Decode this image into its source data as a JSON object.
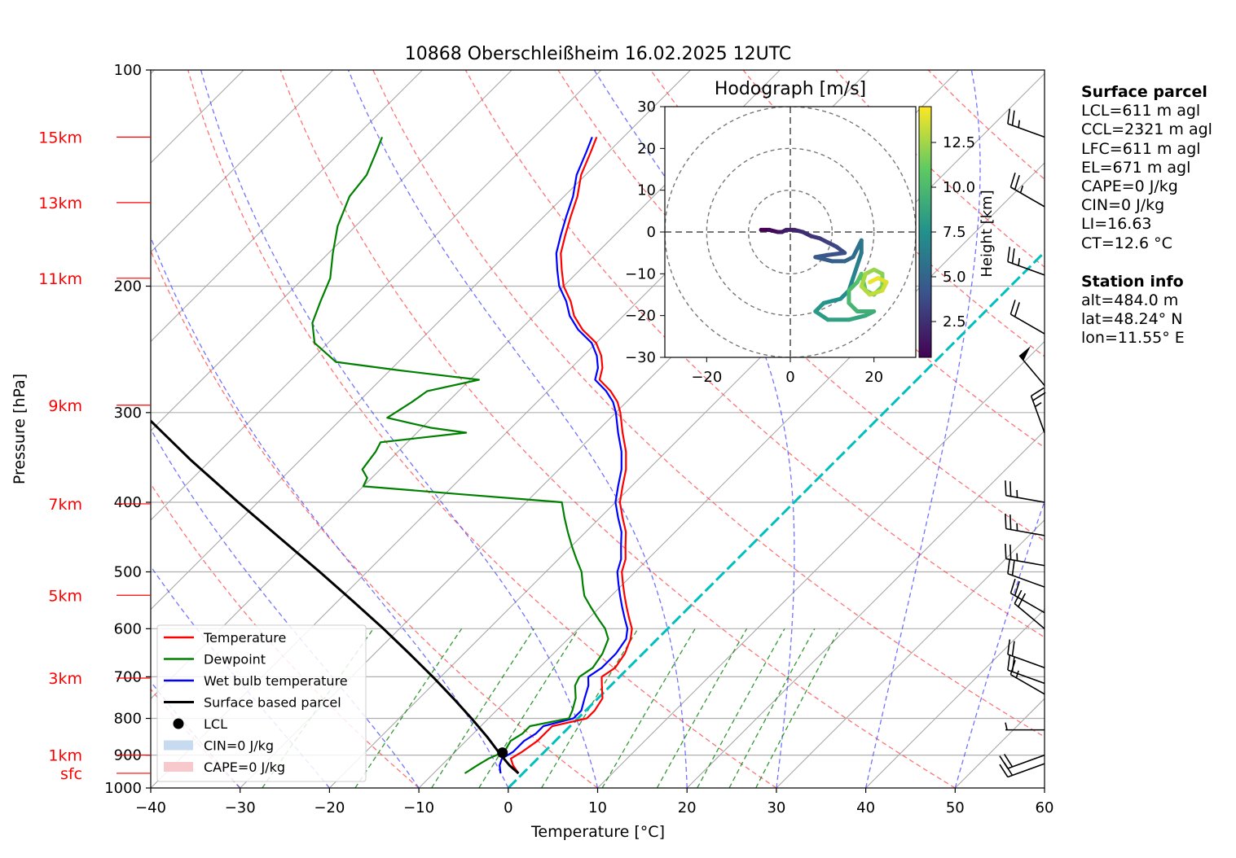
{
  "chart_data": {
    "type": "skew-t",
    "title": "10868 Oberschleißheim 16.02.2025 12UTC",
    "xlabel": "Temperature [°C]",
    "ylabel": "Pressure [hPa]",
    "xlim": [
      -40,
      60
    ],
    "ylim": [
      1000,
      100
    ],
    "x_ticks": [
      "−40",
      "−30",
      "−20",
      "−10",
      "0",
      "10",
      "20",
      "30",
      "40",
      "50",
      "60"
    ],
    "y_ticks": [
      {
        "p": 100,
        "label": "100"
      },
      {
        "p": 200,
        "label": "200"
      },
      {
        "p": 300,
        "label": "300"
      },
      {
        "p": 400,
        "label": "400"
      },
      {
        "p": 500,
        "label": "500"
      },
      {
        "p": 600,
        "label": "600"
      },
      {
        "p": 700,
        "label": "700"
      },
      {
        "p": 800,
        "label": "800"
      },
      {
        "p": 900,
        "label": "900"
      },
      {
        "p": 1000,
        "label": "1000"
      }
    ],
    "height_ticks": [
      {
        "p": 124,
        "label": "15km"
      },
      {
        "p": 153,
        "label": "13km"
      },
      {
        "p": 195,
        "label": "11km"
      },
      {
        "p": 293,
        "label": "9km"
      },
      {
        "p": 402,
        "label": "7km"
      },
      {
        "p": 539,
        "label": "5km"
      },
      {
        "p": 703,
        "label": "3km"
      },
      {
        "p": 900,
        "label": "1km"
      },
      {
        "p": 954,
        "label": "sfc"
      }
    ],
    "grid": true,
    "legend_position": "lower-left",
    "legend": [
      {
        "label": "Temperature",
        "color": "#ff0000",
        "kind": "line"
      },
      {
        "label": "Dewpoint",
        "color": "#008000",
        "kind": "line"
      },
      {
        "label": "Wet bulb temperature",
        "color": "#0000ff",
        "kind": "line"
      },
      {
        "label": "Surface based parcel",
        "color": "#000000",
        "kind": "line"
      },
      {
        "label": "LCL",
        "color": "#000000",
        "kind": "dot"
      },
      {
        "label": "CIN=0 J/kg",
        "color": "#c6dbef",
        "kind": "patch"
      },
      {
        "label": "CAPE=0 J/kg",
        "color": "#f7c9cc",
        "kind": "patch"
      }
    ],
    "series": [
      {
        "name": "Temperature",
        "color": "#ff0000",
        "points": [
          [
            954,
            -0.5
          ],
          [
            930,
            -2.0
          ],
          [
            910,
            -3.0
          ],
          [
            890,
            -2.5
          ],
          [
            860,
            -2.0
          ],
          [
            840,
            -2.0
          ],
          [
            820,
            -2.0
          ],
          [
            800,
            1.0
          ],
          [
            780,
            1.0
          ],
          [
            750,
            0.5
          ],
          [
            720,
            -1.0
          ],
          [
            700,
            -2.0
          ],
          [
            680,
            -1.5
          ],
          [
            650,
            -2.0
          ],
          [
            620,
            -3.0
          ],
          [
            600,
            -4.0
          ],
          [
            580,
            -5.5
          ],
          [
            560,
            -7.0
          ],
          [
            540,
            -8.5
          ],
          [
            520,
            -10.0
          ],
          [
            500,
            -11.5
          ],
          [
            480,
            -12.5
          ],
          [
            460,
            -14.0
          ],
          [
            440,
            -15.5
          ],
          [
            420,
            -17.5
          ],
          [
            400,
            -19.5
          ],
          [
            380,
            -21.0
          ],
          [
            360,
            -22.5
          ],
          [
            340,
            -24.5
          ],
          [
            320,
            -27.0
          ],
          [
            300,
            -29.5
          ],
          [
            290,
            -31.0
          ],
          [
            280,
            -33.0
          ],
          [
            270,
            -35.5
          ],
          [
            260,
            -36.5
          ],
          [
            250,
            -38.0
          ],
          [
            240,
            -40.0
          ],
          [
            230,
            -43.0
          ],
          [
            220,
            -45.5
          ],
          [
            210,
            -47.5
          ],
          [
            200,
            -50.0
          ],
          [
            190,
            -52.0
          ],
          [
            180,
            -54.0
          ],
          [
            170,
            -55.5
          ],
          [
            160,
            -57.0
          ],
          [
            150,
            -58.5
          ],
          [
            140,
            -60.5
          ],
          [
            130,
            -62.0
          ],
          [
            124,
            -63.0
          ]
        ]
      },
      {
        "name": "Wet bulb temperature",
        "color": "#0000ff",
        "points": [
          [
            954,
            -2.5
          ],
          [
            930,
            -3.5
          ],
          [
            910,
            -4.0
          ],
          [
            890,
            -3.5
          ],
          [
            860,
            -3.5
          ],
          [
            840,
            -3.0
          ],
          [
            820,
            -3.0
          ],
          [
            800,
            -0.5
          ],
          [
            780,
            -0.5
          ],
          [
            750,
            -1.5
          ],
          [
            720,
            -2.5
          ],
          [
            700,
            -3.5
          ],
          [
            680,
            -3.0
          ],
          [
            650,
            -3.0
          ],
          [
            620,
            -3.5
          ],
          [
            600,
            -4.5
          ],
          [
            580,
            -6.0
          ],
          [
            560,
            -7.5
          ],
          [
            540,
            -9.0
          ],
          [
            520,
            -10.5
          ],
          [
            500,
            -12.0
          ],
          [
            480,
            -13.0
          ],
          [
            460,
            -14.5
          ],
          [
            440,
            -16.0
          ],
          [
            420,
            -18.0
          ],
          [
            400,
            -20.0
          ],
          [
            380,
            -21.5
          ],
          [
            360,
            -23.0
          ],
          [
            340,
            -25.0
          ],
          [
            320,
            -27.5
          ],
          [
            300,
            -30.0
          ],
          [
            290,
            -31.5
          ],
          [
            280,
            -33.5
          ],
          [
            270,
            -36.0
          ],
          [
            260,
            -37.0
          ],
          [
            250,
            -38.5
          ],
          [
            240,
            -40.5
          ],
          [
            230,
            -43.5
          ],
          [
            220,
            -46.0
          ],
          [
            210,
            -48.0
          ],
          [
            200,
            -50.5
          ],
          [
            190,
            -52.5
          ],
          [
            180,
            -54.5
          ],
          [
            170,
            -56.0
          ],
          [
            160,
            -57.5
          ],
          [
            150,
            -59.0
          ],
          [
            140,
            -61.0
          ],
          [
            130,
            -62.5
          ],
          [
            124,
            -63.5
          ]
        ]
      },
      {
        "name": "Dewpoint",
        "color": "#008000",
        "points": [
          [
            954,
            -6.5
          ],
          [
            930,
            -6.0
          ],
          [
            910,
            -5.5
          ],
          [
            890,
            -4.5
          ],
          [
            860,
            -5.0
          ],
          [
            840,
            -4.5
          ],
          [
            820,
            -4.5
          ],
          [
            800,
            -1.0
          ],
          [
            780,
            -1.5
          ],
          [
            750,
            -2.5
          ],
          [
            720,
            -4.0
          ],
          [
            700,
            -4.5
          ],
          [
            680,
            -4.0
          ],
          [
            650,
            -4.5
          ],
          [
            620,
            -5.5
          ],
          [
            600,
            -7.0
          ],
          [
            580,
            -9.0
          ],
          [
            560,
            -11.0
          ],
          [
            540,
            -13.0
          ],
          [
            520,
            -14.5
          ],
          [
            500,
            -16.0
          ],
          [
            480,
            -18.0
          ],
          [
            460,
            -20.0
          ],
          [
            440,
            -22.0
          ],
          [
            420,
            -24.0
          ],
          [
            400,
            -26.0
          ],
          [
            390,
            -38.0
          ],
          [
            380,
            -50.0
          ],
          [
            370,
            -50.5
          ],
          [
            360,
            -52.0
          ],
          [
            340,
            -52.5
          ],
          [
            330,
            -53.0
          ],
          [
            320,
            -44.5
          ],
          [
            315,
            -49.0
          ],
          [
            305,
            -55.0
          ],
          [
            290,
            -54.0
          ],
          [
            280,
            -53.5
          ],
          [
            270,
            -49.0
          ],
          [
            262,
            -59.0
          ],
          [
            255,
            -67.0
          ],
          [
            240,
            -71.5
          ],
          [
            225,
            -74.0
          ],
          [
            210,
            -75.5
          ],
          [
            195,
            -77.0
          ],
          [
            180,
            -79.5
          ],
          [
            165,
            -82.0
          ],
          [
            150,
            -84.0
          ],
          [
            140,
            -84.5
          ],
          [
            130,
            -86.0
          ],
          [
            124,
            -87.0
          ]
        ]
      },
      {
        "name": "Surface based parcel",
        "color": "#000000",
        "points": [
          [
            954,
            -0.5
          ],
          [
            930,
            -2.4
          ],
          [
            900,
            -4.5
          ],
          [
            850,
            -8.0
          ],
          [
            800,
            -11.9
          ],
          [
            750,
            -16.2
          ],
          [
            700,
            -20.9
          ],
          [
            650,
            -26.1
          ],
          [
            600,
            -31.8
          ],
          [
            550,
            -38.2
          ],
          [
            500,
            -45.3
          ],
          [
            450,
            -53.3
          ],
          [
            400,
            -62.2
          ],
          [
            350,
            -72.1
          ],
          [
            300,
            -83.0
          ],
          [
            280,
            -87.5
          ]
        ]
      }
    ],
    "lcl": {
      "p": 893,
      "t": -4.6
    },
    "hodograph": {
      "title": "Hodograph [m/s]",
      "xlim": [
        -30,
        30
      ],
      "ylim": [
        -30,
        30
      ],
      "x_ticks": [
        "−20",
        "0",
        "20"
      ],
      "y_ticks": [
        {
          "v": 30,
          "label": "30"
        },
        {
          "v": 20,
          "label": "20"
        },
        {
          "v": 10,
          "label": "10"
        },
        {
          "v": 0,
          "label": "0"
        },
        {
          "v": -10,
          "label": "−10"
        },
        {
          "v": -20,
          "label": "−20"
        },
        {
          "v": -30,
          "label": "−30"
        }
      ],
      "rings": [
        10,
        20,
        30
      ],
      "colorbar_label": "Height [km]",
      "colorbar_ticks": [
        "2.5",
        "5.0",
        "7.5",
        "10.0",
        "12.5"
      ],
      "colorbar_range": [
        0.5,
        14.5
      ],
      "points": [
        [
          -7,
          0.5,
          0.5
        ],
        [
          -5,
          0.5,
          0.9
        ],
        [
          -3,
          0.0,
          1.2
        ],
        [
          -2,
          0.0,
          1.5
        ],
        [
          -1,
          0.5,
          1.8
        ],
        [
          1,
          0.5,
          2.1
        ],
        [
          3,
          0.0,
          2.4
        ],
        [
          5,
          -1,
          2.7
        ],
        [
          7,
          -1.5,
          3.0
        ],
        [
          9,
          -2.5,
          3.3
        ],
        [
          11,
          -3.5,
          3.6
        ],
        [
          13,
          -5,
          3.9
        ],
        [
          9,
          -5.5,
          4.2
        ],
        [
          6,
          -6,
          4.5
        ],
        [
          10,
          -7,
          4.8
        ],
        [
          13,
          -7,
          5.1
        ],
        [
          15,
          -6,
          5.4
        ],
        [
          16,
          -4,
          5.7
        ],
        [
          17,
          -2,
          6.0
        ],
        [
          17,
          -5,
          6.3
        ],
        [
          16,
          -8,
          6.6
        ],
        [
          15,
          -11,
          6.9
        ],
        [
          14,
          -14,
          7.2
        ],
        [
          12,
          -16,
          7.5
        ],
        [
          8,
          -17,
          7.8
        ],
        [
          6,
          -19,
          8.1
        ],
        [
          9,
          -21,
          8.4
        ],
        [
          14,
          -21,
          8.7
        ],
        [
          18,
          -20,
          9.0
        ],
        [
          20,
          -19,
          9.3
        ],
        [
          16,
          -19,
          9.6
        ],
        [
          14,
          -17,
          9.9
        ],
        [
          14,
          -14,
          10.2
        ],
        [
          16,
          -12,
          10.5
        ],
        [
          17,
          -10,
          10.8
        ],
        [
          18,
          -14,
          11.1
        ],
        [
          20,
          -15,
          11.4
        ],
        [
          22,
          -13,
          11.7
        ],
        [
          22,
          -10,
          12.0
        ],
        [
          20,
          -9,
          12.3
        ],
        [
          18,
          -10,
          12.6
        ],
        [
          17,
          -13,
          12.9
        ],
        [
          19,
          -15,
          13.2
        ],
        [
          22,
          -14,
          13.5
        ],
        [
          23,
          -12,
          13.8
        ],
        [
          21,
          -11,
          14.1
        ],
        [
          19,
          -12,
          14.4
        ]
      ]
    },
    "wind_barbs": [
      {
        "p": 124,
        "speed": 25,
        "dir": 290
      },
      {
        "p": 155,
        "speed": 25,
        "dir": 300
      },
      {
        "p": 193,
        "speed": 25,
        "dir": 290
      },
      {
        "p": 233,
        "speed": 20,
        "dir": 300
      },
      {
        "p": 275,
        "speed": 50,
        "dir": 320
      },
      {
        "p": 320,
        "speed": 25,
        "dir": 340
      },
      {
        "p": 400,
        "speed": 25,
        "dir": 280
      },
      {
        "p": 445,
        "speed": 25,
        "dir": 280
      },
      {
        "p": 490,
        "speed": 25,
        "dir": 280
      },
      {
        "p": 525,
        "speed": 20,
        "dir": 290
      },
      {
        "p": 570,
        "speed": 20,
        "dir": 300
      },
      {
        "p": 600,
        "speed": 20,
        "dir": 310
      },
      {
        "p": 680,
        "speed": 20,
        "dir": 290
      },
      {
        "p": 715,
        "speed": 20,
        "dir": 290
      },
      {
        "p": 740,
        "speed": 15,
        "dir": 300
      },
      {
        "p": 830,
        "speed": 5,
        "dir": 270
      },
      {
        "p": 900,
        "speed": 20,
        "dir": 250
      },
      {
        "p": 925,
        "speed": 20,
        "dir": 250
      }
    ]
  },
  "surface_parcel": {
    "heading": "Surface parcel",
    "lines": [
      "LCL=611 m agl",
      "CCL=2321 m agl",
      "LFC=611 m agl",
      "EL=671 m agl",
      "CAPE=0 J/kg",
      "CIN=0 J/kg",
      "LI=16.63",
      "CT=12.6 °C"
    ]
  },
  "station_info": {
    "heading": "Station info",
    "lines": [
      "alt=484.0 m",
      "lat=48.24° N",
      "lon=11.55° E"
    ]
  }
}
